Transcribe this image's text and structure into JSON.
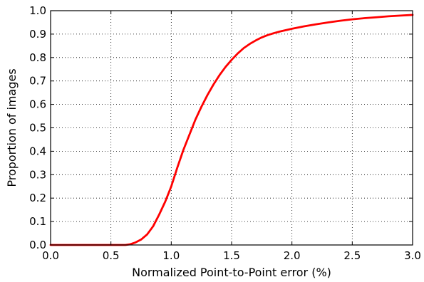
{
  "chart_data": {
    "type": "line",
    "title": "",
    "xlabel": "Normalized Point-to-Point error (%)",
    "ylabel": "Proportion of images",
    "xlim": [
      0.0,
      3.0
    ],
    "ylim": [
      0.0,
      1.0
    ],
    "x_ticks": [
      0.0,
      0.5,
      1.0,
      1.5,
      2.0,
      2.5,
      3.0
    ],
    "x_tick_labels": [
      "0.0",
      "0.5",
      "1.0",
      "1.5",
      "2.0",
      "2.5",
      "3.0"
    ],
    "y_ticks": [
      0.0,
      0.1,
      0.2,
      0.3,
      0.4,
      0.5,
      0.6,
      0.7,
      0.8,
      0.9,
      1.0
    ],
    "y_tick_labels": [
      "0.0",
      "0.1",
      "0.2",
      "0.3",
      "0.4",
      "0.5",
      "0.6",
      "0.7",
      "0.8",
      "0.9",
      "1.0"
    ],
    "grid": true,
    "legend": "none",
    "series": [
      {
        "color": "#ff0000",
        "x": [
          0.0,
          0.5,
          0.62,
          0.66,
          0.7,
          0.75,
          0.8,
          0.85,
          0.9,
          0.95,
          1.0,
          1.05,
          1.1,
          1.15,
          1.2,
          1.25,
          1.3,
          1.35,
          1.4,
          1.45,
          1.5,
          1.55,
          1.6,
          1.65,
          1.7,
          1.75,
          1.8,
          1.85,
          1.9,
          2.0,
          2.1,
          2.2,
          2.3,
          2.4,
          2.5,
          2.6,
          2.7,
          2.8,
          2.9,
          3.0
        ],
        "y": [
          0.0,
          0.0,
          0.0,
          0.003,
          0.01,
          0.023,
          0.045,
          0.08,
          0.13,
          0.185,
          0.25,
          0.33,
          0.405,
          0.47,
          0.535,
          0.59,
          0.64,
          0.685,
          0.725,
          0.76,
          0.79,
          0.817,
          0.84,
          0.858,
          0.873,
          0.886,
          0.896,
          0.904,
          0.911,
          0.923,
          0.933,
          0.942,
          0.95,
          0.957,
          0.963,
          0.968,
          0.972,
          0.976,
          0.979,
          0.982
        ]
      }
    ]
  }
}
